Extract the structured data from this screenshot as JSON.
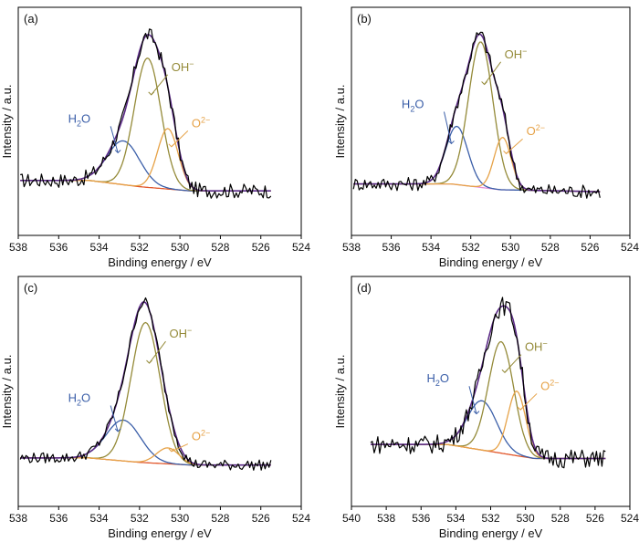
{
  "chart_data": [
    {
      "panel_label": "(a)",
      "type": "line",
      "xlabel": "Binding energy / eV",
      "ylabel": "Intensity / a.u.",
      "xlim": [
        538,
        524
      ],
      "x_ticks": [
        538,
        536,
        534,
        532,
        530,
        528,
        526,
        524
      ],
      "y_ticks_visible": false,
      "spectrum_x_range": [
        537.9,
        525.5
      ],
      "baseline": [
        {
          "x": 537.9,
          "y": 0.0
        },
        {
          "x": 534.5,
          "y": 0.0
        },
        {
          "x": 532.0,
          "y": -0.06
        },
        {
          "x": 529.5,
          "y": -0.1
        },
        {
          "x": 525.5,
          "y": -0.1
        }
      ],
      "baseline_color": "#e2572b",
      "peaks": [
        {
          "label": "H2O",
          "label_main": "H",
          "label_sub": "2",
          "label_tail": "O",
          "center": 532.8,
          "height": 0.42,
          "fwhm": 1.9,
          "color": "#3a5ea8",
          "label_anchor": "left"
        },
        {
          "label": "OH−",
          "label_main": "OH",
          "label_sup": "−",
          "center": 531.6,
          "height": 1.24,
          "fwhm": 1.55,
          "color": "#948a38",
          "label_anchor": "right"
        },
        {
          "label": "O2−",
          "label_main": "O",
          "label_sup": "2−",
          "center": 530.6,
          "height": 0.58,
          "fwhm": 1.2,
          "color": "#e6a247",
          "label_anchor": "right"
        }
      ],
      "envelope_color": "#5b2a86",
      "noise_amplitude": 0.07,
      "colors": {
        "data": "#000000"
      }
    },
    {
      "panel_label": "(b)",
      "type": "line",
      "xlabel": "Binding energy / eV",
      "ylabel": "Intensity / a.u.",
      "xlim": [
        538,
        524
      ],
      "x_ticks": [
        538,
        536,
        534,
        532,
        530,
        528,
        526,
        524
      ],
      "y_ticks_visible": false,
      "spectrum_x_range": [
        537.9,
        525.5
      ],
      "baseline": [
        {
          "x": 537.9,
          "y": 0.0
        },
        {
          "x": 533.0,
          "y": 0.0
        },
        {
          "x": 530.5,
          "y": -0.06
        },
        {
          "x": 525.5,
          "y": -0.08
        }
      ],
      "baseline_color": "#e58fd6",
      "peaks": [
        {
          "label": "H2O",
          "label_main": "H",
          "label_sub": "2",
          "label_tail": "O",
          "center": 532.7,
          "height": 0.6,
          "fwhm": 1.3,
          "color": "#3a5ea8",
          "label_anchor": "left"
        },
        {
          "label": "OH−",
          "label_main": "OH",
          "label_sup": "−",
          "center": 531.5,
          "height": 1.5,
          "fwhm": 1.45,
          "color": "#948a38",
          "label_anchor": "right"
        },
        {
          "label": "O2−",
          "label_main": "O",
          "label_sup": "2−",
          "center": 530.4,
          "height": 0.54,
          "fwhm": 1.0,
          "color": "#e6a247",
          "label_anchor": "right"
        }
      ],
      "envelope_color": "#5b2a86",
      "noise_amplitude": 0.07,
      "colors": {
        "data": "#000000"
      }
    },
    {
      "panel_label": "(c)",
      "type": "line",
      "xlabel": "Binding energy / eV",
      "ylabel": "Intensity / a.u.",
      "xlim": [
        538,
        524
      ],
      "x_ticks": [
        538,
        536,
        534,
        532,
        530,
        528,
        526,
        524
      ],
      "y_ticks_visible": false,
      "spectrum_x_range": [
        537.9,
        525.5
      ],
      "baseline": [
        {
          "x": 537.9,
          "y": 0.0
        },
        {
          "x": 534.5,
          "y": 0.0
        },
        {
          "x": 532.0,
          "y": -0.05
        },
        {
          "x": 529.5,
          "y": -0.08
        },
        {
          "x": 525.5,
          "y": -0.08
        }
      ],
      "baseline_color": "#e2572b",
      "peaks": [
        {
          "label": "H2O",
          "label_main": "H",
          "label_sub": "2",
          "label_tail": "O",
          "center": 532.8,
          "height": 0.46,
          "fwhm": 2.0,
          "color": "#3a5ea8",
          "label_anchor": "left"
        },
        {
          "label": "OH−",
          "label_main": "OH",
          "label_sup": "−",
          "center": 531.7,
          "height": 1.58,
          "fwhm": 1.7,
          "color": "#948a38",
          "label_anchor": "right"
        },
        {
          "label": "O2−",
          "label_main": "O",
          "label_sup": "2−",
          "center": 530.6,
          "height": 0.18,
          "fwhm": 1.3,
          "color": "#e6a247",
          "label_anchor": "right"
        }
      ],
      "envelope_color": "#5b2a86",
      "noise_amplitude": 0.06,
      "colors": {
        "data": "#000000"
      }
    },
    {
      "panel_label": "(d)",
      "type": "line",
      "xlabel": "Binding energy / eV",
      "ylabel": "Intensity / a.u.",
      "xlim": [
        540,
        524
      ],
      "x_ticks": [
        540,
        538,
        536,
        534,
        532,
        530,
        528,
        526,
        524
      ],
      "y_ticks_visible": false,
      "spectrum_x_range": [
        538.9,
        525.4
      ],
      "baseline": [
        {
          "x": 538.9,
          "y": 0.0
        },
        {
          "x": 534.5,
          "y": 0.0
        },
        {
          "x": 532.0,
          "y": -0.06
        },
        {
          "x": 529.5,
          "y": -0.12
        },
        {
          "x": 525.4,
          "y": -0.12
        }
      ],
      "baseline_color": "#e2572b",
      "peaks": [
        {
          "label": "H2O",
          "label_main": "H",
          "label_sub": "2",
          "label_tail": "O",
          "center": 532.5,
          "height": 0.42,
          "fwhm": 2.0,
          "color": "#3a5ea8",
          "label_anchor": "left"
        },
        {
          "label": "OH−",
          "label_main": "OH",
          "label_sup": "−",
          "center": 531.4,
          "height": 0.95,
          "fwhm": 1.7,
          "color": "#948a38",
          "label_anchor": "right"
        },
        {
          "label": "O2−",
          "label_main": "O",
          "label_sup": "2−",
          "center": 530.5,
          "height": 0.55,
          "fwhm": 1.2,
          "color": "#e6a247",
          "label_anchor": "right"
        }
      ],
      "envelope_color": "#5b2a86",
      "noise_amplitude": 0.08,
      "colors": {
        "data": "#000000"
      }
    }
  ]
}
